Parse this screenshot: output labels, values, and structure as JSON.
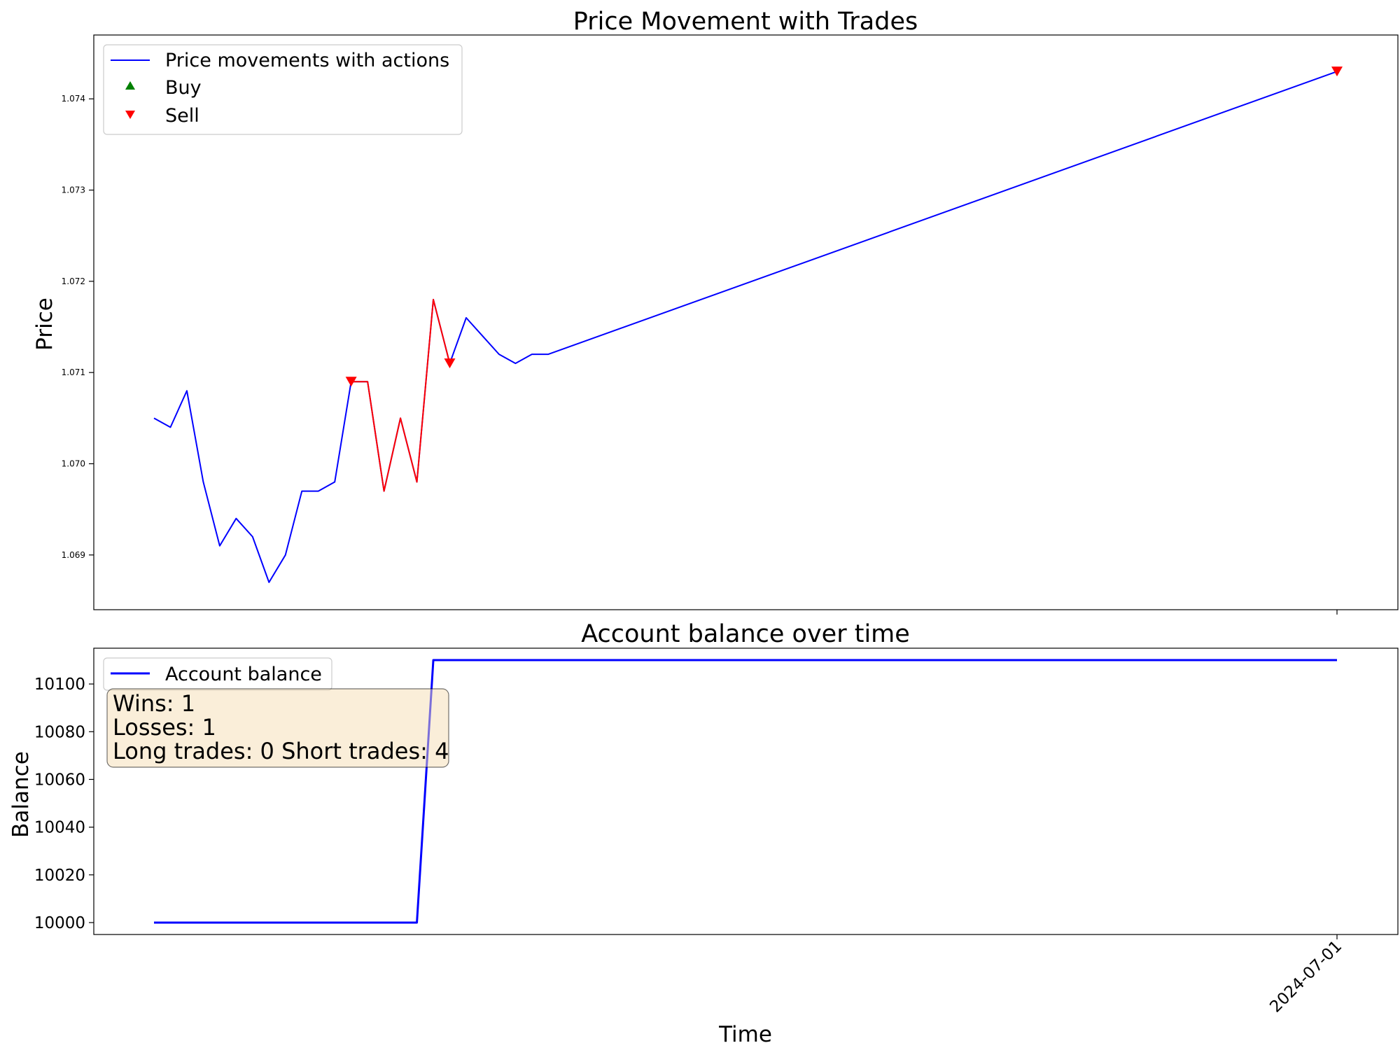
{
  "chart_data": [
    {
      "type": "line",
      "title": "Price Movement with Trades",
      "xlabel": "",
      "ylabel": "Price",
      "ylim": [
        1.0684,
        1.0747
      ],
      "y_ticks": [
        "1.069",
        "1.070",
        "1.071",
        "1.072",
        "1.073",
        "1.074"
      ],
      "x_ticks": [],
      "x_index_range": [
        0,
        72
      ],
      "series": [
        {
          "name": "Price movements with actions",
          "color": "#0000ff",
          "x": [
            0,
            1,
            2,
            3,
            4,
            5,
            6,
            7,
            8,
            9,
            10,
            11,
            12,
            13,
            14,
            15,
            16,
            17,
            18,
            19,
            20,
            21,
            22,
            23,
            24,
            72
          ],
          "y": [
            1.0705,
            1.0704,
            1.0708,
            1.0698,
            1.0691,
            1.0694,
            1.0692,
            1.0687,
            1.069,
            1.0697,
            1.0697,
            1.0698,
            1.0709,
            1.0709,
            1.0697,
            1.0705,
            1.0698,
            1.0718,
            1.0711,
            1.0716,
            1.0714,
            1.0712,
            1.0711,
            1.0712,
            1.0712,
            1.0743
          ]
        }
      ],
      "highlight_segments": [
        {
          "color": "#ff0000",
          "x": [
            12,
            13,
            14,
            15,
            16,
            17,
            18
          ],
          "y": [
            1.0709,
            1.0709,
            1.0697,
            1.0705,
            1.0698,
            1.0718,
            1.0711
          ]
        }
      ],
      "markers": {
        "buy": {
          "label": "Buy",
          "color": "#008000",
          "points": []
        },
        "sell": {
          "label": "Sell",
          "color": "#ff0000",
          "points": [
            {
              "x": 12,
              "y": 1.0709
            },
            {
              "x": 18,
              "y": 1.0711
            },
            {
              "x": 72,
              "y": 1.0743
            }
          ]
        }
      },
      "legend": {
        "position": "top-left",
        "items": [
          "Price movements with actions",
          "Buy",
          "Sell"
        ]
      }
    },
    {
      "type": "line",
      "title": "Account balance over time",
      "xlabel": "Time",
      "ylabel": "Balance",
      "ylim": [
        9995,
        10115
      ],
      "y_ticks": [
        "10000",
        "10020",
        "10040",
        "10060",
        "10080",
        "10100"
      ],
      "x_ticks": [
        {
          "x": 72,
          "label": "2024-07-01"
        }
      ],
      "x_index_range": [
        0,
        72
      ],
      "series": [
        {
          "name": "Account balance",
          "color": "#0000ff",
          "x": [
            0,
            16,
            17,
            72
          ],
          "y": [
            10000,
            10000,
            10110,
            10110
          ]
        }
      ],
      "legend": {
        "position": "top-left",
        "items": [
          "Account balance"
        ]
      },
      "stats_box": {
        "line1": "Wins: 1",
        "line2": "Losses: 1",
        "line3": "Long trades: 0 Short trades: 4"
      }
    }
  ]
}
